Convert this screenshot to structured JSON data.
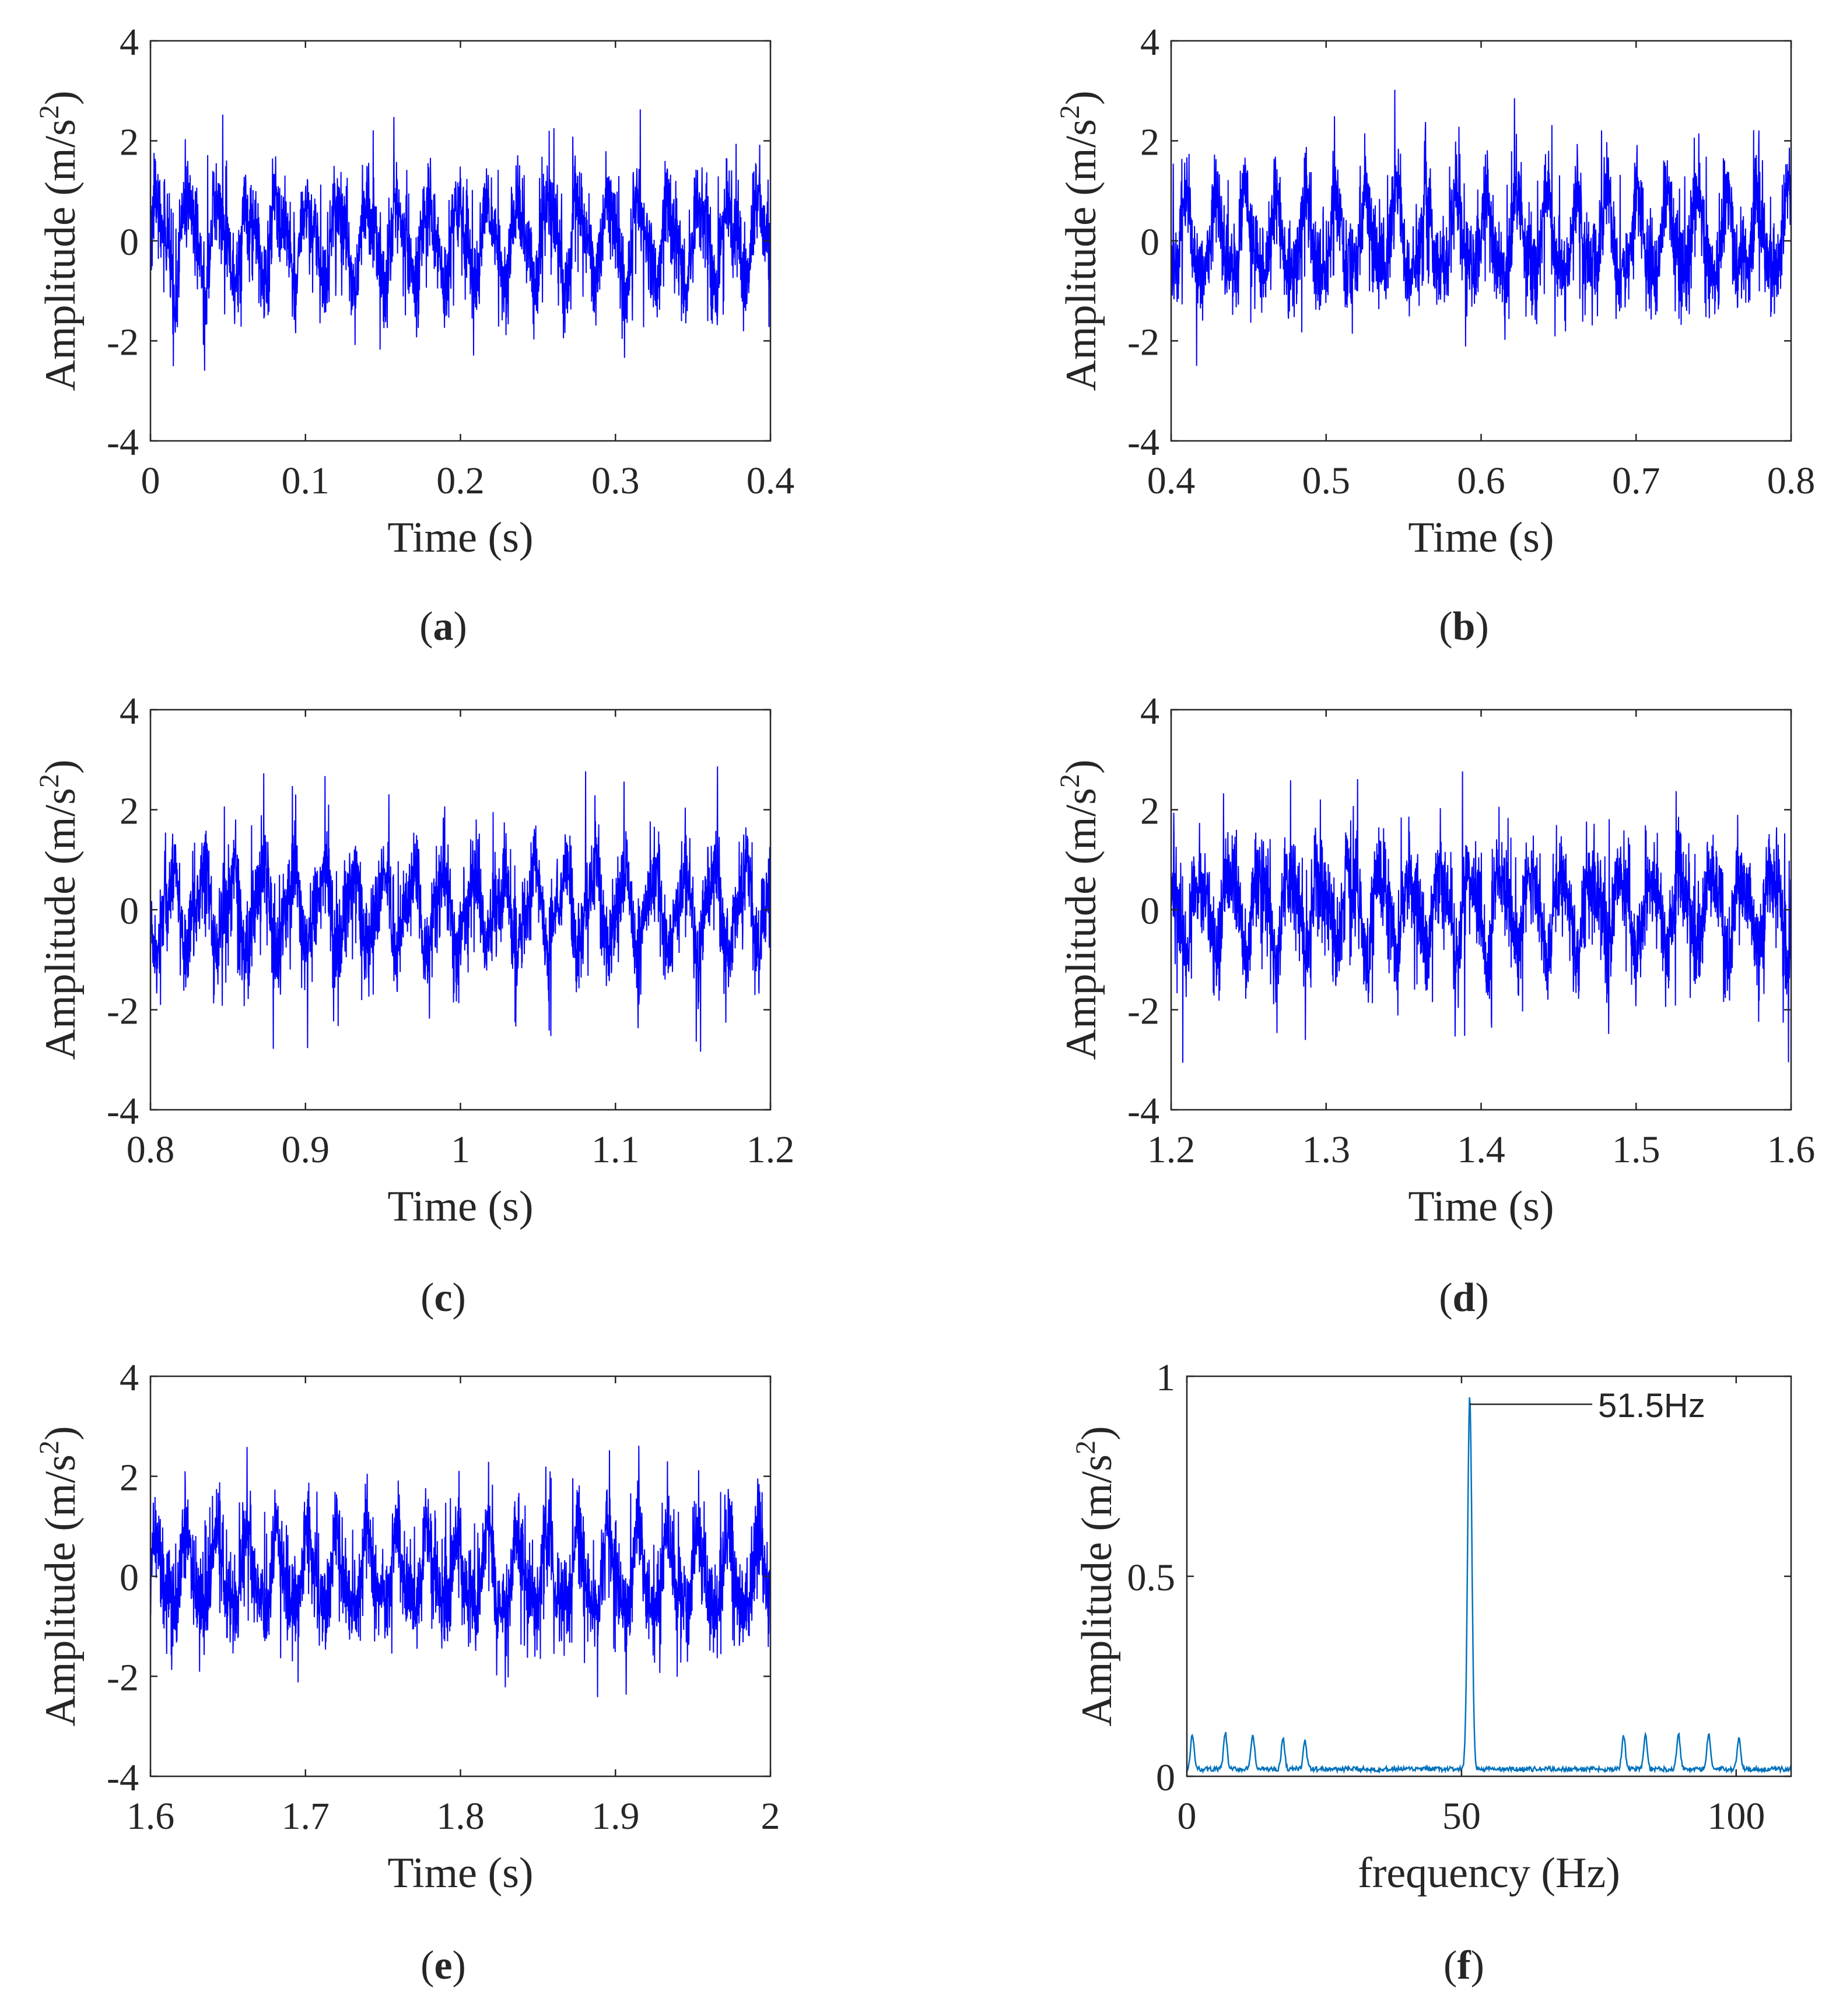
{
  "figure": {
    "panels": [
      {
        "id": "a",
        "label_open": "(",
        "label_letter": "a",
        "label_close": ")"
      },
      {
        "id": "b",
        "label_open": "(",
        "label_letter": "b",
        "label_close": ")"
      },
      {
        "id": "c",
        "label_open": "(",
        "label_letter": "c",
        "label_close": ")"
      },
      {
        "id": "d",
        "label_open": "(",
        "label_letter": "d",
        "label_close": ")"
      },
      {
        "id": "e",
        "label_open": "(",
        "label_letter": "e",
        "label_close": ")"
      },
      {
        "id": "f",
        "label_open": "(",
        "label_letter": "f",
        "label_close": ")"
      }
    ]
  },
  "chart_data": [
    {
      "panel": "a",
      "type": "line",
      "xlabel": "Time (s)",
      "ylabel_main": "Amplitude (m/s",
      "ylabel_sup": "2",
      "ylabel_end": ")",
      "xlim": [
        0,
        0.4
      ],
      "ylim": [
        -4,
        4
      ],
      "xticks": [
        0,
        0.1,
        0.2,
        0.3,
        0.4
      ],
      "xticklabels": [
        "0",
        "0.1",
        "0.2",
        "0.3",
        "0.4"
      ],
      "yticks": [
        -4,
        -2,
        0,
        2,
        4
      ],
      "yticklabels": [
        "-4",
        "-2",
        "0",
        "2",
        "4"
      ],
      "color": "#0000ff",
      "signal": {
        "description_free": true,
        "amplitude_range": [
          -2.7,
          2.7
        ],
        "dominant_frequency_hz": 51.5
      }
    },
    {
      "panel": "b",
      "type": "line",
      "xlabel": "Time (s)",
      "ylabel_main": "Amplitude (m/s",
      "ylabel_sup": "2",
      "ylabel_end": ")",
      "xlim": [
        0.4,
        0.8
      ],
      "ylim": [
        -4,
        4
      ],
      "xticks": [
        0.4,
        0.5,
        0.6,
        0.7,
        0.8
      ],
      "xticklabels": [
        "0.4",
        "0.5",
        "0.6",
        "0.7",
        "0.8"
      ],
      "yticks": [
        -4,
        -2,
        0,
        2,
        4
      ],
      "yticklabels": [
        "-4",
        "-2",
        "0",
        "2",
        "4"
      ],
      "color": "#0000ff",
      "signal": {
        "description_free": true,
        "amplitude_range": [
          -3.1,
          3.1
        ],
        "dominant_frequency_hz": 51.5
      }
    },
    {
      "panel": "c",
      "type": "line",
      "xlabel": "Time (s)",
      "ylabel_main": "Amplitude (m/s",
      "ylabel_sup": "2",
      "ylabel_end": ")",
      "xlim": [
        0.8,
        1.2
      ],
      "ylim": [
        -4,
        4
      ],
      "xticks": [
        0.8,
        0.9,
        1.0,
        1.1,
        1.2
      ],
      "xticklabels": [
        "0.8",
        "0.9",
        "1",
        "1.1",
        "1.2"
      ],
      "yticks": [
        -4,
        -2,
        0,
        2,
        4
      ],
      "yticklabels": [
        "-4",
        "-2",
        "0",
        "2",
        "4"
      ],
      "color": "#0000ff",
      "signal": {
        "description_free": true,
        "amplitude_range": [
          -2.8,
          3.0
        ],
        "dominant_frequency_hz": 51.5
      }
    },
    {
      "panel": "d",
      "type": "line",
      "xlabel": "Time (s)",
      "ylabel_main": "Amplitude (m/s",
      "ylabel_sup": "2",
      "ylabel_end": ")",
      "xlim": [
        1.2,
        1.6
      ],
      "ylim": [
        -4,
        4
      ],
      "xticks": [
        1.2,
        1.3,
        1.4,
        1.5,
        1.6
      ],
      "xticklabels": [
        "1.2",
        "1.3",
        "1.4",
        "1.5",
        "1.6"
      ],
      "yticks": [
        -4,
        -2,
        0,
        2,
        4
      ],
      "yticklabels": [
        "-4",
        "-2",
        "0",
        "2",
        "4"
      ],
      "color": "#0000ff",
      "signal": {
        "description_free": true,
        "amplitude_range": [
          -3.3,
          3.2
        ],
        "dominant_frequency_hz": 51.5
      }
    },
    {
      "panel": "e",
      "type": "line",
      "xlabel": "Time (s)",
      "ylabel_main": "Amplitude (m/s",
      "ylabel_sup": "2",
      "ylabel_end": ")",
      "xlim": [
        1.6,
        2.0
      ],
      "ylim": [
        -4,
        4
      ],
      "xticks": [
        1.6,
        1.7,
        1.8,
        1.9,
        2.0
      ],
      "xticklabels": [
        "1.6",
        "1.7",
        "1.8",
        "1.9",
        "2"
      ],
      "yticks": [
        -4,
        -2,
        0,
        2,
        4
      ],
      "yticklabels": [
        "-4",
        "-2",
        "0",
        "2",
        "4"
      ],
      "color": "#0000ff",
      "signal": {
        "description_free": true,
        "amplitude_range": [
          -3.0,
          3.1
        ],
        "dominant_frequency_hz": 51.5
      }
    },
    {
      "panel": "f",
      "type": "line",
      "xlabel": "frequency (Hz)",
      "ylabel_main": "Amplitude (m/s",
      "ylabel_sup": "2",
      "ylabel_end": ")",
      "xlim": [
        0,
        110
      ],
      "ylim": [
        0,
        1
      ],
      "xticks": [
        0,
        50,
        100
      ],
      "xticklabels": [
        "0",
        "50",
        "100"
      ],
      "yticks": [
        0,
        0.5,
        1
      ],
      "yticklabels": [
        "0",
        "0.5",
        "1"
      ],
      "color": "#0072bd",
      "peaks": [
        {
          "x": 1.0,
          "y": 0.085
        },
        {
          "x": 7.0,
          "y": 0.09
        },
        {
          "x": 12.0,
          "y": 0.085
        },
        {
          "x": 17.5,
          "y": 0.075
        },
        {
          "x": 21.5,
          "y": 0.07
        },
        {
          "x": 51.5,
          "y": 0.93
        },
        {
          "x": 79.5,
          "y": 0.085
        },
        {
          "x": 83.5,
          "y": 0.085
        },
        {
          "x": 89.5,
          "y": 0.09
        },
        {
          "x": 95.0,
          "y": 0.09
        },
        {
          "x": 100.5,
          "y": 0.08
        }
      ],
      "annotation": {
        "text": "51.5Hz",
        "x": 51.5,
        "y": 0.93
      }
    }
  ]
}
